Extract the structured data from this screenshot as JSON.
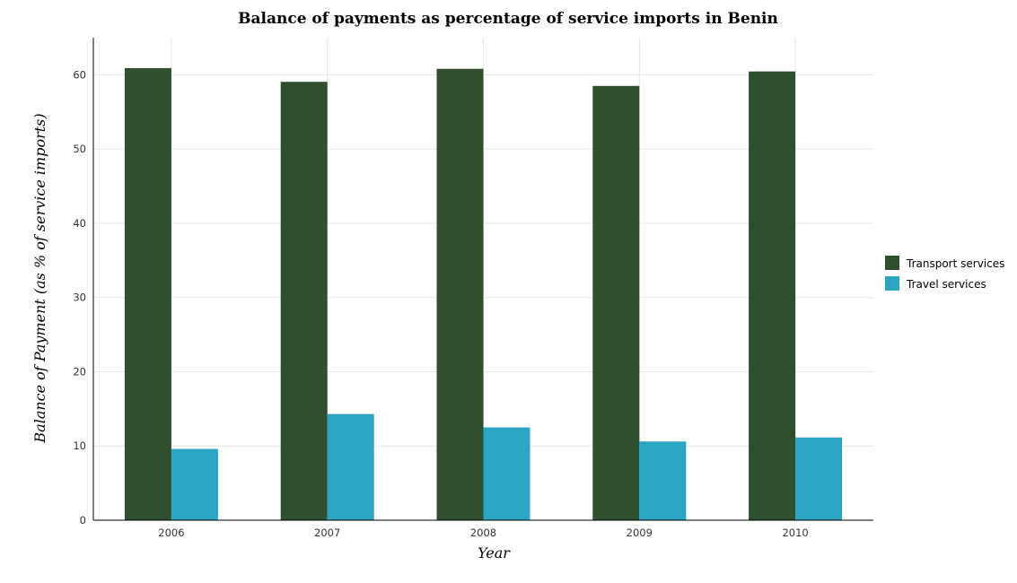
{
  "chart_data": {
    "type": "bar",
    "title": "Balance of payments as percentage of service imports in Benin",
    "xlabel": "Year",
    "ylabel": "Balance of Payment (as % of service imports)",
    "categories": [
      "2006",
      "2007",
      "2008",
      "2009",
      "2010"
    ],
    "series": [
      {
        "name": "Transport services",
        "color": "#2f4f2f",
        "values": [
          60.9,
          59.05,
          60.8,
          58.5,
          60.45
        ]
      },
      {
        "name": "Travel services",
        "color": "#2aa6c4",
        "values": [
          9.6,
          14.3,
          12.5,
          10.6,
          11.15
        ]
      }
    ],
    "ylim": [
      0,
      65
    ],
    "yticks": [
      0,
      10,
      20,
      30,
      40,
      50,
      60
    ],
    "grid": true,
    "legend_position": "right"
  }
}
